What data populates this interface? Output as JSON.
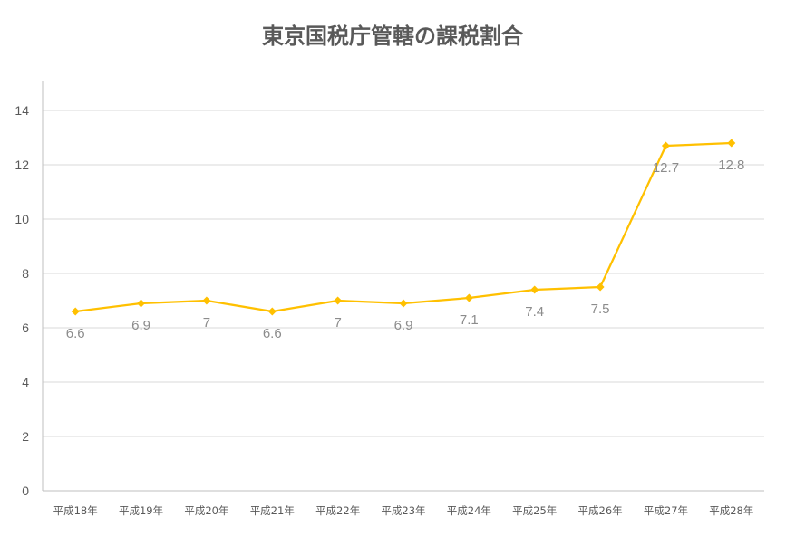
{
  "chart_data": {
    "type": "line",
    "title": "東京国税庁管轄の課税割合",
    "xlabel": "",
    "ylabel": "",
    "categories": [
      "平成18年",
      "平成19年",
      "平成20年",
      "平成21年",
      "平成22年",
      "平成23年",
      "平成24年",
      "平成25年",
      "平成26年",
      "平成27年",
      "平成28年"
    ],
    "series": [
      {
        "values": [
          6.6,
          6.9,
          7,
          6.6,
          7,
          6.9,
          7.1,
          7.4,
          7.5,
          12.7,
          12.8
        ],
        "color": "#FFC000"
      }
    ],
    "data_labels": [
      "6.6",
      "6.9",
      "7",
      "6.6",
      "7",
      "6.9",
      "7.1",
      "7.4",
      "7.5",
      "12.7",
      "12.8"
    ],
    "ylim": [
      0,
      14
    ],
    "yticks": [
      "0",
      "2",
      "4",
      "6",
      "8",
      "10",
      "12",
      "14"
    ],
    "grid": true,
    "legend": "none",
    "marker": "diamond"
  }
}
